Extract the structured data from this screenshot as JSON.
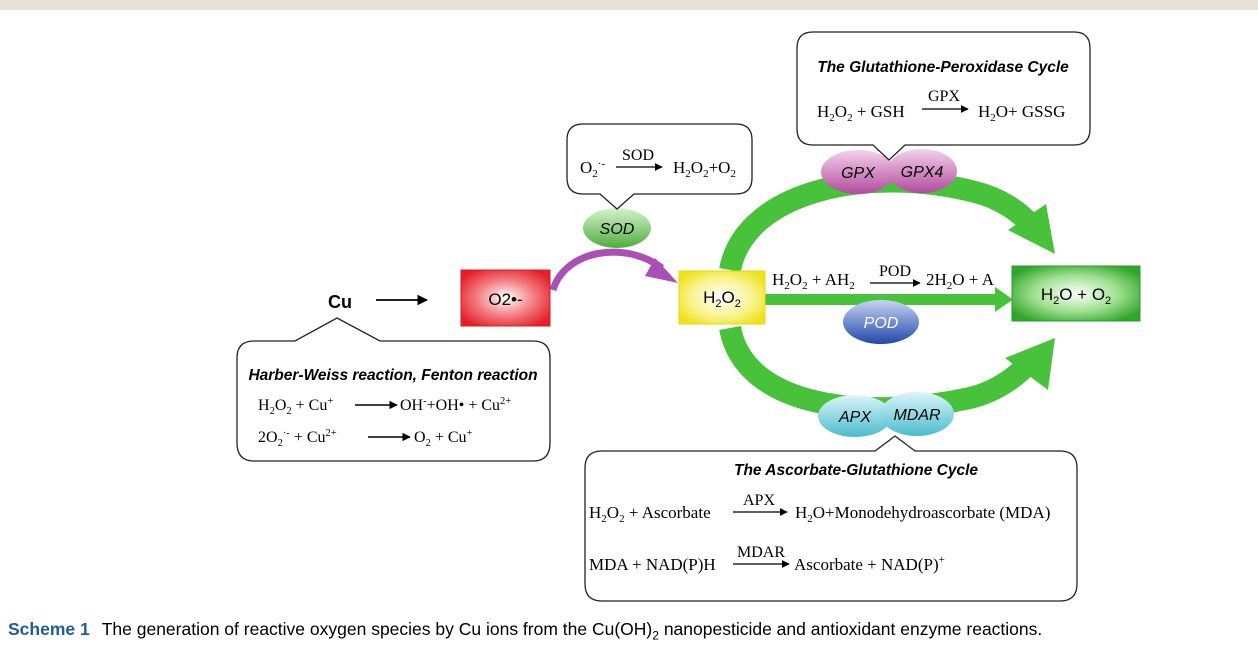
{
  "colors": {
    "green_arrow": "#48c23a",
    "purple_arrow": "#a94fb5",
    "o2_box": "#e8232c",
    "h2o2_box": "#f3ec1e",
    "h2o_box": "#3db33a",
    "sod_oval": "#6ac05a",
    "gpx_oval": "#c663b4",
    "pod_oval": "#2f5fc0",
    "apx_oval": "#6fd0de",
    "caption_label": "#1f5c9a"
  },
  "nodes": {
    "cu": "Cu",
    "o2_radical": "O2•-",
    "h2o2": "H2O2",
    "h2o_o2": "H2O + O2"
  },
  "enzymes": {
    "sod": "SOD",
    "gpx": "GPX",
    "gpx4": "GPX4",
    "pod": "POD",
    "apx": "APX",
    "mdar": "MDAR"
  },
  "pod_reaction": {
    "left": "H2O2 + AH2",
    "enzyme": "POD",
    "right": "2H2O + A"
  },
  "callouts": {
    "sod": {
      "left": "O2·-",
      "enzyme": "SOD",
      "right": "H2O2+O2"
    },
    "gpx": {
      "title": "The Glutathione-Peroxidase Cycle",
      "left": "H2O2 +  GSH",
      "enzyme": "GPX",
      "right": "H2O+ GSSG"
    },
    "harber": {
      "title": "Harber-Weiss reaction, Fenton reaction",
      "r1_left": "H2O2 +  Cu+",
      "r1_right": "OH-+OH• + Cu2+",
      "r2_left": "2O2·- +  Cu2+",
      "r2_right": "O2 + Cu+"
    },
    "asa": {
      "title": "The Ascorbate-Glutathione Cycle",
      "r1_left": "H2O2 +  Ascorbate",
      "r1_enzyme": "APX",
      "r1_right": "H2O+Monodehydroascorbate  (MDA)",
      "r2_left": "MDA +  NAD(P)H",
      "r2_enzyme": "MDAR",
      "r2_right": "Ascorbate  + NAD(P)+"
    }
  },
  "caption": {
    "label": "Scheme 1",
    "text": "The generation of reactive oxygen species by Cu ions from the Cu(OH)2 nanopesticide and antioxidant enzyme reactions."
  }
}
